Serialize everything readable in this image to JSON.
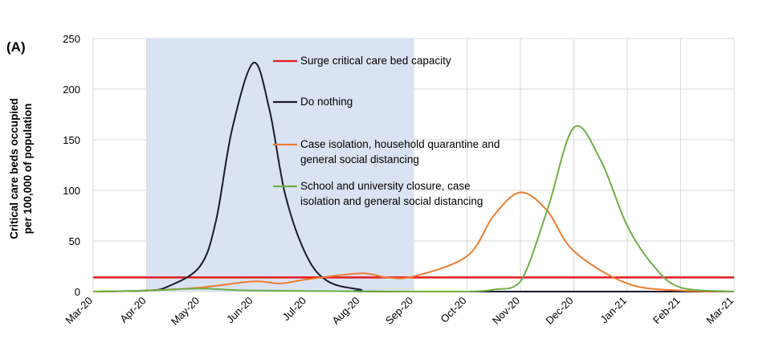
{
  "chart_data": {
    "type": "line",
    "panel_label": "(A)",
    "ylabel_lines": [
      "Critical care beds occupied",
      "per 100,000 of population"
    ],
    "ylim": [
      0,
      250
    ],
    "yticks": [
      0,
      50,
      100,
      150,
      200,
      250
    ],
    "x_categories": [
      "Mar-20",
      "Apr-20",
      "May-20",
      "Jun-20",
      "Jul-20",
      "Aug-20",
      "Sep-20",
      "Oct-20",
      "Nov-20",
      "Dec-20",
      "Jan-21",
      "Feb-21",
      "Mar-21"
    ],
    "grid": true,
    "shaded_period": {
      "start": "Apr-20",
      "end": "Sep-20",
      "color": "#dae3f3"
    },
    "series": [
      {
        "name": "Surge critical care bed capacity",
        "legend_lines": [
          "Surge critical care bed capacity"
        ],
        "color": "#e31a1c",
        "points": [
          [
            "Mar-20",
            14
          ],
          [
            "Mar-21",
            14
          ]
        ]
      },
      {
        "name": "Do nothing",
        "legend_lines": [
          "Do nothing"
        ],
        "color": "#1a1a2e",
        "points": [
          [
            "Mar-20",
            0
          ],
          [
            "Apr-20",
            1
          ],
          [
            "Apr-20+0.4",
            5
          ],
          [
            "May-20",
            25
          ],
          [
            "May-20+0.3",
            70
          ],
          [
            "May-20+0.6",
            160
          ],
          [
            "Jun-20",
            226
          ],
          [
            "Jun-20+0.3",
            180
          ],
          [
            "Jun-20+0.6",
            95
          ],
          [
            "Jul-20",
            35
          ],
          [
            "Jul-20+0.4",
            10
          ],
          [
            "Aug-20",
            2
          ],
          [
            "Aug-20+0.5",
            0
          ],
          [
            "Mar-21",
            0
          ]
        ]
      },
      {
        "name": "Case isolation, household quarantine and general social distancing",
        "legend_lines": [
          "Case isolation, household quarantine and",
          "general social distancing"
        ],
        "color": "#ed7d31",
        "points": [
          [
            "Mar-20",
            0
          ],
          [
            "Apr-20",
            1
          ],
          [
            "May-20",
            4
          ],
          [
            "Jun-20",
            10
          ],
          [
            "Jun-20+0.5",
            8
          ],
          [
            "Jul-20",
            12
          ],
          [
            "Aug-20",
            18
          ],
          [
            "Aug-20+0.5",
            14
          ],
          [
            "Sep-20",
            15
          ],
          [
            "Oct-20",
            35
          ],
          [
            "Oct-20+0.5",
            75
          ],
          [
            "Nov-20",
            98
          ],
          [
            "Nov-20+0.5",
            80
          ],
          [
            "Dec-20",
            40
          ],
          [
            "Jan-21",
            8
          ],
          [
            "Feb-21",
            1
          ],
          [
            "Mar-21",
            0
          ]
        ]
      },
      {
        "name": "School and university closure, case isolation and general social distancing",
        "legend_lines": [
          "School and university closure, case",
          "isolation and general social distancing"
        ],
        "color": "#70ad47",
        "points": [
          [
            "Mar-20",
            0
          ],
          [
            "Apr-20",
            1
          ],
          [
            "May-20",
            3
          ],
          [
            "Jun-20",
            1
          ],
          [
            "Sep-20",
            0
          ],
          [
            "Oct-20",
            0
          ],
          [
            "Oct-20+0.5",
            2
          ],
          [
            "Nov-20",
            10
          ],
          [
            "Nov-20+0.5",
            80
          ],
          [
            "Dec-20",
            162
          ],
          [
            "Dec-20+0.5",
            130
          ],
          [
            "Jan-21",
            65
          ],
          [
            "Jan-21+0.5",
            25
          ],
          [
            "Feb-21",
            4
          ],
          [
            "Mar-21",
            0
          ]
        ]
      }
    ]
  }
}
